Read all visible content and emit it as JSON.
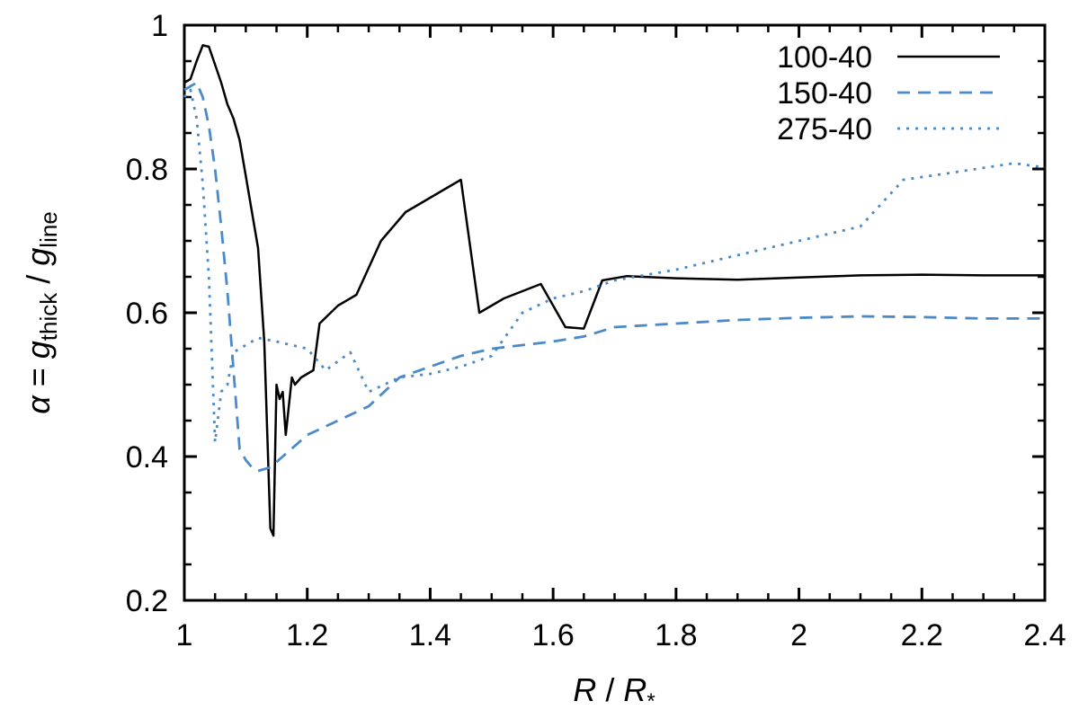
{
  "chart_data": {
    "type": "line",
    "xlabel": {
      "main": "R",
      "sep": " / ",
      "main2": "R",
      "sub2": "*"
    },
    "ylabel": {
      "alpha": "α",
      "eq": " = ",
      "g": "g",
      "sub1": "thick",
      "sep": " / ",
      "sub2": "line"
    },
    "xlim": [
      1,
      2.4
    ],
    "ylim": [
      0.2,
      1.0
    ],
    "xticks": [
      "1",
      "1.2",
      "1.4",
      "1.6",
      "1.8",
      "2",
      "2.2",
      "2.4"
    ],
    "yticks": [
      "0.2",
      "0.4",
      "0.6",
      "0.8",
      "1"
    ],
    "legend_position": "top-right",
    "grid": false,
    "series": [
      {
        "name": "100-40",
        "color": "#000000",
        "dash": "solid",
        "points": [
          [
            1.0,
            0.92
          ],
          [
            1.01,
            0.925
          ],
          [
            1.02,
            0.95
          ],
          [
            1.03,
            0.972
          ],
          [
            1.04,
            0.97
          ],
          [
            1.05,
            0.945
          ],
          [
            1.06,
            0.92
          ],
          [
            1.07,
            0.89
          ],
          [
            1.08,
            0.87
          ],
          [
            1.09,
            0.84
          ],
          [
            1.1,
            0.79
          ],
          [
            1.11,
            0.74
          ],
          [
            1.12,
            0.69
          ],
          [
            1.13,
            0.56
          ],
          [
            1.14,
            0.3
          ],
          [
            1.145,
            0.29
          ],
          [
            1.15,
            0.5
          ],
          [
            1.155,
            0.48
          ],
          [
            1.16,
            0.49
          ],
          [
            1.165,
            0.43
          ],
          [
            1.175,
            0.51
          ],
          [
            1.18,
            0.5
          ],
          [
            1.19,
            0.51
          ],
          [
            1.21,
            0.52
          ],
          [
            1.22,
            0.585
          ],
          [
            1.25,
            0.61
          ],
          [
            1.28,
            0.625
          ],
          [
            1.32,
            0.7
          ],
          [
            1.36,
            0.74
          ],
          [
            1.4,
            0.76
          ],
          [
            1.45,
            0.785
          ],
          [
            1.48,
            0.6
          ],
          [
            1.52,
            0.62
          ],
          [
            1.55,
            0.63
          ],
          [
            1.58,
            0.64
          ],
          [
            1.62,
            0.58
          ],
          [
            1.65,
            0.578
          ],
          [
            1.68,
            0.645
          ],
          [
            1.72,
            0.651
          ],
          [
            1.8,
            0.648
          ],
          [
            1.9,
            0.646
          ],
          [
            2.0,
            0.649
          ],
          [
            2.1,
            0.652
          ],
          [
            2.2,
            0.653
          ],
          [
            2.3,
            0.652
          ],
          [
            2.4,
            0.652
          ]
        ]
      },
      {
        "name": "150-40",
        "color": "#4a8ac8",
        "dash": "dashed",
        "points": [
          [
            1.0,
            0.91
          ],
          [
            1.01,
            0.915
          ],
          [
            1.02,
            0.92
          ],
          [
            1.03,
            0.9
          ],
          [
            1.04,
            0.86
          ],
          [
            1.05,
            0.8
          ],
          [
            1.06,
            0.72
          ],
          [
            1.07,
            0.63
          ],
          [
            1.08,
            0.52
          ],
          [
            1.09,
            0.41
          ],
          [
            1.1,
            0.395
          ],
          [
            1.11,
            0.385
          ],
          [
            1.12,
            0.38
          ],
          [
            1.14,
            0.385
          ],
          [
            1.16,
            0.4
          ],
          [
            1.2,
            0.43
          ],
          [
            1.25,
            0.45
          ],
          [
            1.3,
            0.47
          ],
          [
            1.35,
            0.51
          ],
          [
            1.4,
            0.525
          ],
          [
            1.45,
            0.54
          ],
          [
            1.5,
            0.55
          ],
          [
            1.55,
            0.555
          ],
          [
            1.6,
            0.56
          ],
          [
            1.65,
            0.567
          ],
          [
            1.7,
            0.58
          ],
          [
            1.8,
            0.585
          ],
          [
            1.9,
            0.59
          ],
          [
            2.0,
            0.593
          ],
          [
            2.1,
            0.595
          ],
          [
            2.2,
            0.594
          ],
          [
            2.3,
            0.592
          ],
          [
            2.4,
            0.592
          ]
        ]
      },
      {
        "name": "275-40",
        "color": "#4a8ac8",
        "dash": "dotted",
        "points": [
          [
            1.0,
            0.9
          ],
          [
            1.01,
            0.91
          ],
          [
            1.02,
            0.87
          ],
          [
            1.03,
            0.78
          ],
          [
            1.04,
            0.65
          ],
          [
            1.05,
            0.42
          ],
          [
            1.06,
            0.49
          ],
          [
            1.07,
            0.5
          ],
          [
            1.08,
            0.545
          ],
          [
            1.1,
            0.555
          ],
          [
            1.12,
            0.565
          ],
          [
            1.15,
            0.56
          ],
          [
            1.2,
            0.55
          ],
          [
            1.23,
            0.52
          ],
          [
            1.27,
            0.545
          ],
          [
            1.3,
            0.49
          ],
          [
            1.35,
            0.51
          ],
          [
            1.4,
            0.515
          ],
          [
            1.45,
            0.525
          ],
          [
            1.5,
            0.54
          ],
          [
            1.55,
            0.6
          ],
          [
            1.6,
            0.62
          ],
          [
            1.65,
            0.63
          ],
          [
            1.7,
            0.645
          ],
          [
            1.8,
            0.66
          ],
          [
            1.9,
            0.68
          ],
          [
            2.0,
            0.7
          ],
          [
            2.1,
            0.72
          ],
          [
            2.17,
            0.785
          ],
          [
            2.25,
            0.795
          ],
          [
            2.35,
            0.808
          ],
          [
            2.4,
            0.802
          ]
        ]
      }
    ]
  }
}
